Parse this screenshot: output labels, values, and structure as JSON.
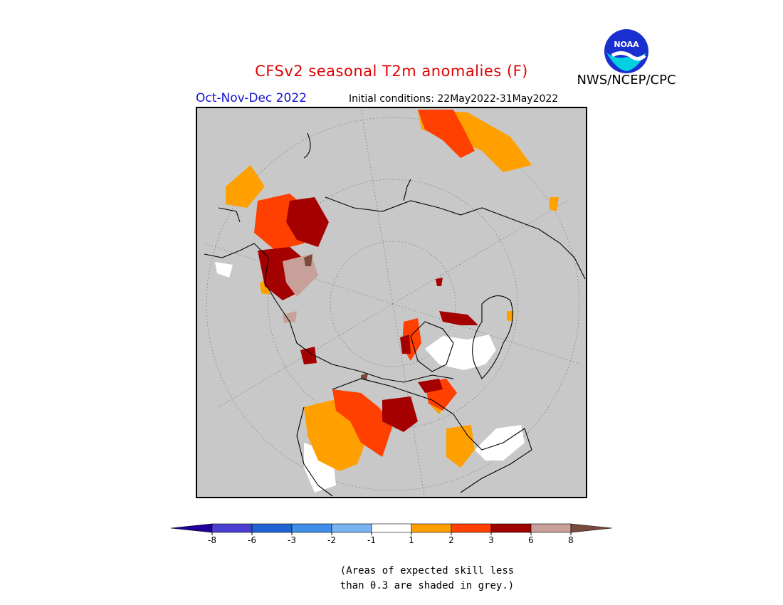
{
  "header": {
    "title": "CFSv2 seasonal T2m anomalies (F)",
    "agency": "NWS/NCEP/CPC",
    "logo_text": "NOAA",
    "season": "Oct-Nov-Dec 2022",
    "initial_conditions": "Initial conditions: 22May2022-31May2022"
  },
  "colorbar": {
    "ticks": [
      "-8",
      "-6",
      "-3",
      "-2",
      "-1",
      "1",
      "2",
      "3",
      "6",
      "8"
    ],
    "colors": [
      "#1f009b",
      "#4a3fd0",
      "#1e64d2",
      "#3f8fe9",
      "#78b4f2",
      "#ffffff",
      "#ff9f00",
      "#ff4000",
      "#a00000",
      "#c8a09a",
      "#7a4a3a"
    ]
  },
  "legend_colors": {
    "anomaly_1_2": "#ffa000",
    "anomaly_2_3": "#ff4000",
    "anomaly_3_6": "#a50000",
    "anomaly_6_8": "#c8a09a",
    "anomaly_above_8": "#7a4a3a",
    "anomaly_minus1_1": "#ffffff",
    "low_skill": "#c8c8c8"
  },
  "footnote": {
    "line1": "(Areas of expected skill less",
    "line2": "than 0.3 are shaded in grey.)"
  }
}
